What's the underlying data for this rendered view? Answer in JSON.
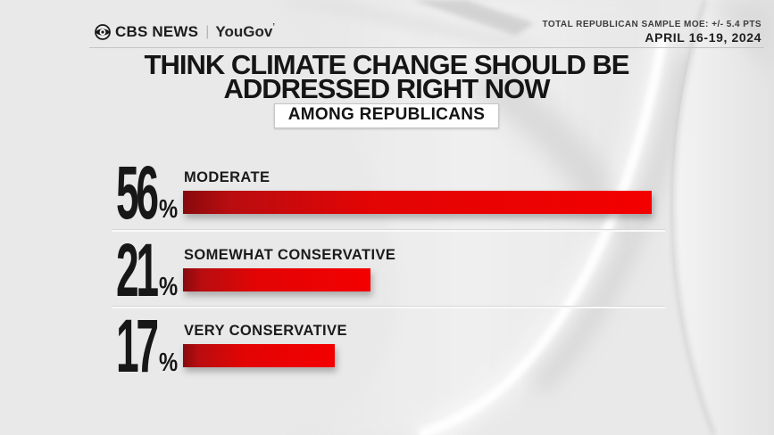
{
  "header": {
    "logo": {
      "eye_icon": "cbs-eye-icon",
      "cbs": "CBS NEWS",
      "divider": "|",
      "partner": "YouGov",
      "partner_tick": "’"
    },
    "moe_note": "TOTAL REPUBLICAN SAMPLE MOE: +/- 5.4 PTS",
    "date": "APRIL 16-19, 2024"
  },
  "title": {
    "line1": "THINK CLIMATE CHANGE SHOULD BE",
    "line2": "ADDRESSED RIGHT NOW"
  },
  "badge": {
    "label": "AMONG REPUBLICANS"
  },
  "chart_data": {
    "type": "bar",
    "orientation": "horizontal",
    "title": "THINK CLIMATE CHANGE SHOULD BE ADDRESSED RIGHT NOW",
    "subtitle": "AMONG REPUBLICANS",
    "categories": [
      "MODERATE",
      "SOMEWHAT CONSERVATIVE",
      "VERY CONSERVATIVE"
    ],
    "values": [
      56,
      21,
      17
    ],
    "unit": "%",
    "xlim": [
      0,
      56
    ],
    "grid": false,
    "legend": false,
    "bar_gradient": [
      "#8e0b0f",
      "#f40000"
    ],
    "value_label_color": "#171717",
    "source_note": "TOTAL REPUBLICAN SAMPLE MOE: +/- 5.4 PTS",
    "date": "APRIL 16-19, 2024"
  },
  "colors": {
    "background": "#e9e9e9",
    "accent_red": "#e80000",
    "text_dark": "#1a1a1a",
    "badge_bg": "#ffffff",
    "badge_border": "#c6c6c6",
    "divider": "#fafafa"
  }
}
